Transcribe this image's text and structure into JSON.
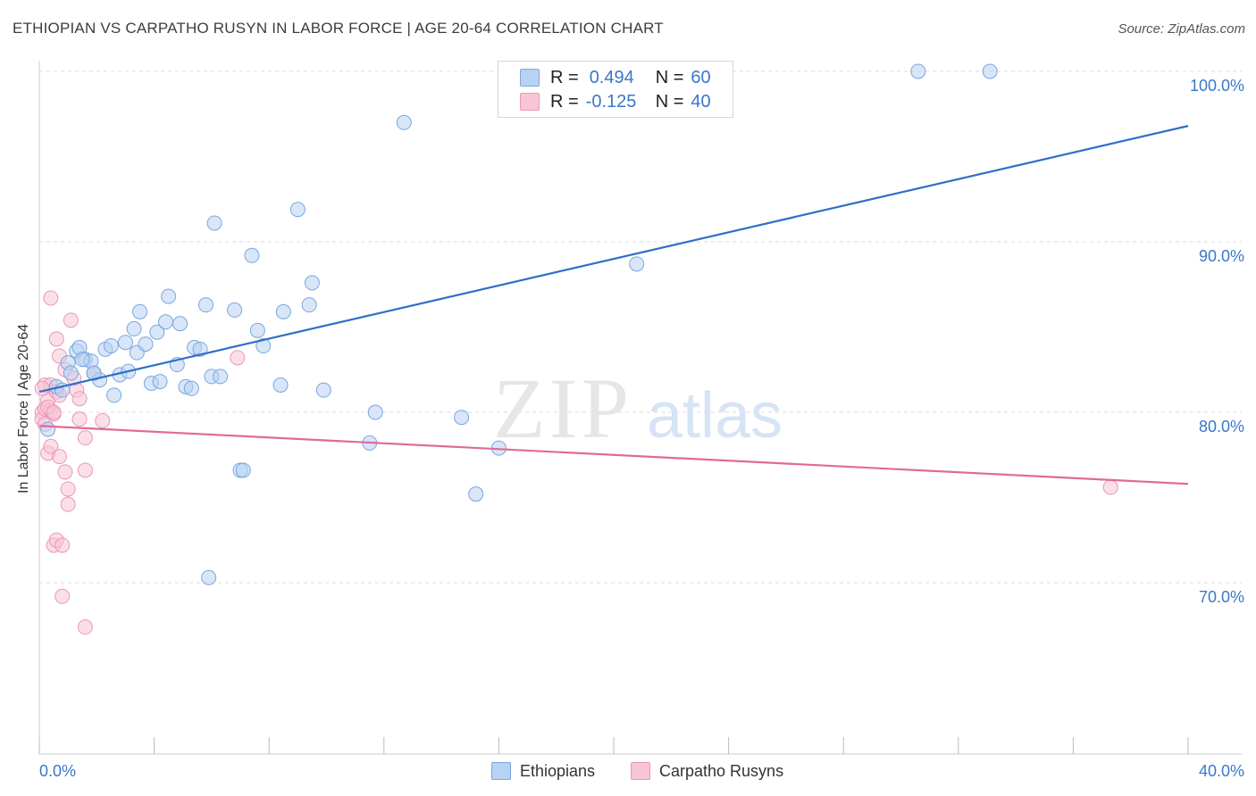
{
  "header": {
    "title": "ETHIOPIAN VS CARPATHO RUSYN IN LABOR FORCE | AGE 20-64 CORRELATION CHART",
    "source": "Source: ZipAtlas.com"
  },
  "watermark": {
    "zip": "ZIP",
    "atlas": "atlas"
  },
  "legend": {
    "rows": [
      {
        "r_label": "R =",
        "r_value": "0.494",
        "n_label": "N =",
        "n_value": "60"
      },
      {
        "r_label": "R =",
        "r_value": "-0.125",
        "n_label": "N =",
        "n_value": "40"
      }
    ]
  },
  "colors": {
    "ethiopians_fill": "#b8d2f3",
    "ethiopians_stroke": "#7aa6de",
    "ethiopians_line": "#2f6fc7",
    "rusyns_fill": "#f8c5d5",
    "rusyns_stroke": "#ec97b2",
    "rusyns_line": "#e06a94",
    "axis_label": "#3a77c9",
    "grid": "#dddddd"
  },
  "chart_data": {
    "type": "scatter",
    "title": "ETHIOPIAN VS CARPATHO RUSYN IN LABOR FORCE | AGE 20-64 CORRELATION CHART",
    "xlabel": "",
    "ylabel": "In Labor Force | Age 20-64",
    "xlim": [
      0,
      40
    ],
    "ylim": [
      60,
      101
    ],
    "x_tick_labels": [
      "0.0%",
      "40.0%"
    ],
    "y_ticks": [
      70,
      80,
      90,
      100
    ],
    "y_tick_labels": [
      "70.0%",
      "80.0%",
      "90.0%",
      "100.0%"
    ],
    "grid": true,
    "legend_position": "top-center",
    "series": [
      {
        "name": "Ethiopians",
        "r": 0.494,
        "n": 60,
        "trend": {
          "x": [
            0,
            40
          ],
          "y": [
            81.2,
            96.8
          ]
        },
        "points": [
          [
            0.3,
            79.0
          ],
          [
            0.6,
            81.5
          ],
          [
            0.8,
            81.3
          ],
          [
            1.0,
            82.9
          ],
          [
            1.1,
            82.3
          ],
          [
            1.3,
            83.6
          ],
          [
            1.4,
            83.8
          ],
          [
            1.6,
            83.1
          ],
          [
            1.8,
            83.0
          ],
          [
            1.9,
            82.3
          ],
          [
            2.1,
            81.9
          ],
          [
            2.3,
            83.7
          ],
          [
            2.5,
            83.9
          ],
          [
            2.6,
            81.0
          ],
          [
            2.8,
            82.2
          ],
          [
            3.0,
            84.1
          ],
          [
            3.1,
            82.4
          ],
          [
            3.3,
            84.9
          ],
          [
            3.4,
            83.5
          ],
          [
            3.5,
            85.9
          ],
          [
            3.7,
            84.0
          ],
          [
            3.9,
            81.7
          ],
          [
            4.1,
            84.7
          ],
          [
            4.2,
            81.8
          ],
          [
            4.4,
            85.3
          ],
          [
            4.5,
            86.8
          ],
          [
            4.8,
            82.8
          ],
          [
            4.9,
            85.2
          ],
          [
            5.1,
            81.5
          ],
          [
            5.3,
            81.4
          ],
          [
            5.4,
            83.8
          ],
          [
            5.6,
            83.7
          ],
          [
            5.8,
            86.3
          ],
          [
            6.0,
            82.1
          ],
          [
            6.1,
            91.1
          ],
          [
            6.3,
            82.1
          ],
          [
            6.8,
            86.0
          ],
          [
            7.0,
            76.6
          ],
          [
            7.1,
            76.6
          ],
          [
            7.4,
            89.2
          ],
          [
            7.6,
            84.8
          ],
          [
            7.8,
            83.9
          ],
          [
            8.4,
            81.6
          ],
          [
            8.5,
            85.9
          ],
          [
            9.0,
            91.9
          ],
          [
            9.4,
            86.3
          ],
          [
            9.5,
            87.6
          ],
          [
            9.9,
            81.3
          ],
          [
            11.5,
            78.2
          ],
          [
            11.7,
            80.0
          ],
          [
            12.7,
            97.0
          ],
          [
            14.7,
            79.7
          ],
          [
            15.2,
            75.2
          ],
          [
            16.0,
            77.9
          ],
          [
            20.8,
            88.7
          ],
          [
            30.6,
            100.0
          ],
          [
            33.1,
            100.0
          ],
          [
            5.9,
            70.3
          ],
          [
            1.9,
            82.3
          ],
          [
            1.5,
            83.1
          ]
        ]
      },
      {
        "name": "Carpatho Rusyns",
        "r": -0.125,
        "n": 40,
        "trend": {
          "x": [
            0,
            40
          ],
          "y": [
            79.2,
            75.8
          ]
        },
        "points": [
          [
            0.1,
            80.0
          ],
          [
            0.1,
            79.6
          ],
          [
            0.2,
            81.6
          ],
          [
            0.2,
            80.2
          ],
          [
            0.3,
            80.7
          ],
          [
            0.3,
            77.6
          ],
          [
            0.4,
            81.6
          ],
          [
            0.4,
            80.1
          ],
          [
            0.4,
            78.0
          ],
          [
            0.5,
            79.9
          ],
          [
            0.6,
            81.2
          ],
          [
            0.5,
            72.2
          ],
          [
            0.6,
            72.5
          ],
          [
            0.6,
            84.3
          ],
          [
            0.7,
            83.3
          ],
          [
            0.7,
            77.4
          ],
          [
            0.8,
            69.2
          ],
          [
            0.8,
            72.2
          ],
          [
            0.9,
            82.5
          ],
          [
            0.9,
            76.5
          ],
          [
            1.0,
            75.5
          ],
          [
            1.0,
            74.6
          ],
          [
            1.1,
            85.4
          ],
          [
            1.3,
            81.3
          ],
          [
            1.4,
            79.6
          ],
          [
            1.4,
            80.8
          ],
          [
            1.6,
            78.5
          ],
          [
            1.6,
            76.6
          ],
          [
            1.6,
            67.4
          ],
          [
            1.9,
            82.3
          ],
          [
            2.2,
            79.5
          ],
          [
            0.4,
            86.7
          ],
          [
            0.2,
            79.3
          ],
          [
            0.3,
            80.3
          ],
          [
            6.9,
            83.2
          ],
          [
            37.3,
            75.6
          ],
          [
            0.1,
            81.4
          ],
          [
            0.5,
            80.0
          ],
          [
            0.7,
            81.0
          ],
          [
            1.2,
            82.0
          ]
        ]
      }
    ]
  }
}
